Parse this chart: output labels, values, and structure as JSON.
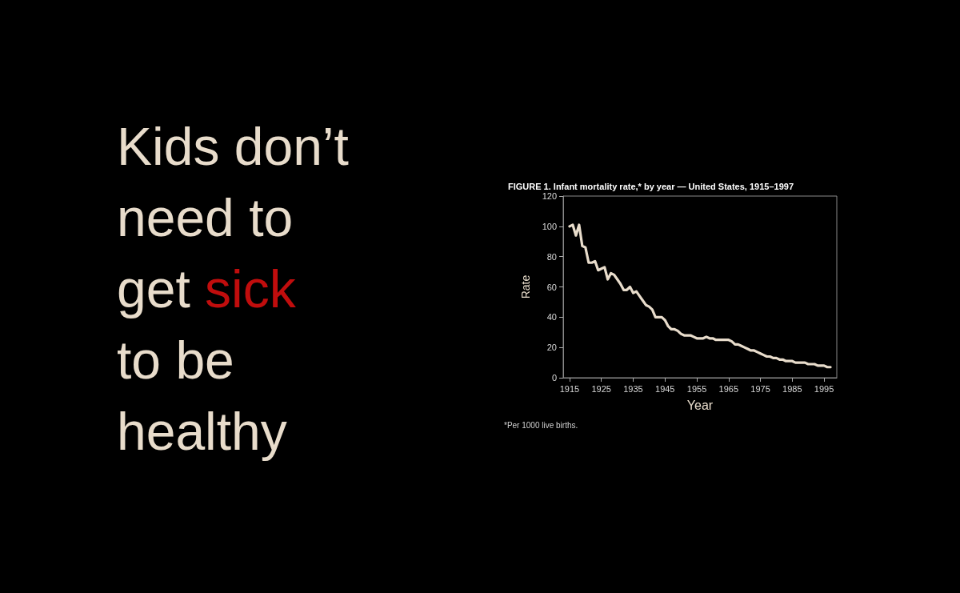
{
  "chart_data": {
    "type": "line",
    "title": "FIGURE 1. Infant mortality rate,* by year — United States, 1915–1997",
    "xlabel": "Year",
    "ylabel": "Rate",
    "annotations": [
      "Kids don’t need to get sick to be healthy",
      "*Per 1000 live births."
    ],
    "x": [
      1915,
      1916,
      1917,
      1918,
      1919,
      1920,
      1921,
      1922,
      1923,
      1924,
      1925,
      1926,
      1927,
      1928,
      1929,
      1930,
      1931,
      1932,
      1933,
      1934,
      1935,
      1936,
      1937,
      1938,
      1939,
      1940,
      1941,
      1942,
      1943,
      1944,
      1945,
      1946,
      1947,
      1948,
      1949,
      1950,
      1951,
      1952,
      1953,
      1954,
      1955,
      1956,
      1957,
      1958,
      1959,
      1960,
      1961,
      1962,
      1963,
      1964,
      1965,
      1966,
      1967,
      1968,
      1969,
      1970,
      1971,
      1972,
      1973,
      1974,
      1975,
      1976,
      1977,
      1978,
      1979,
      1980,
      1981,
      1982,
      1983,
      1984,
      1985,
      1986,
      1987,
      1988,
      1989,
      1990,
      1991,
      1992,
      1993,
      1994,
      1995,
      1996,
      1997
    ],
    "series": [
      {
        "color": "#e8dccb",
        "values": [
          100,
          101,
          94,
          101,
          87,
          86,
          76,
          76,
          77,
          71,
          72,
          73,
          65,
          69,
          68,
          65,
          62,
          58,
          58,
          60,
          56,
          57,
          54,
          51,
          48,
          47,
          45,
          40,
          40,
          40,
          38,
          34,
          32,
          32,
          31,
          29,
          28,
          28,
          28,
          27,
          26,
          26,
          26,
          27,
          26,
          26,
          25,
          25,
          25,
          25,
          25,
          24,
          22,
          22,
          21,
          20,
          19,
          18,
          18,
          17,
          16,
          15,
          14,
          14,
          13,
          13,
          12,
          12,
          11,
          11,
          11,
          10,
          10,
          10,
          10,
          9,
          9,
          9,
          8,
          8,
          8,
          7,
          7
        ]
      }
    ],
    "xlim": [
      1913,
      1999
    ],
    "xticks": [
      1915,
      1925,
      1935,
      1945,
      1955,
      1965,
      1975,
      1985,
      1995
    ],
    "ylim": [
      0,
      120
    ],
    "yticks": [
      0,
      20,
      40,
      60,
      80,
      100,
      120
    ],
    "grid": false,
    "marker": "none",
    "line_style": "solid"
  }
}
